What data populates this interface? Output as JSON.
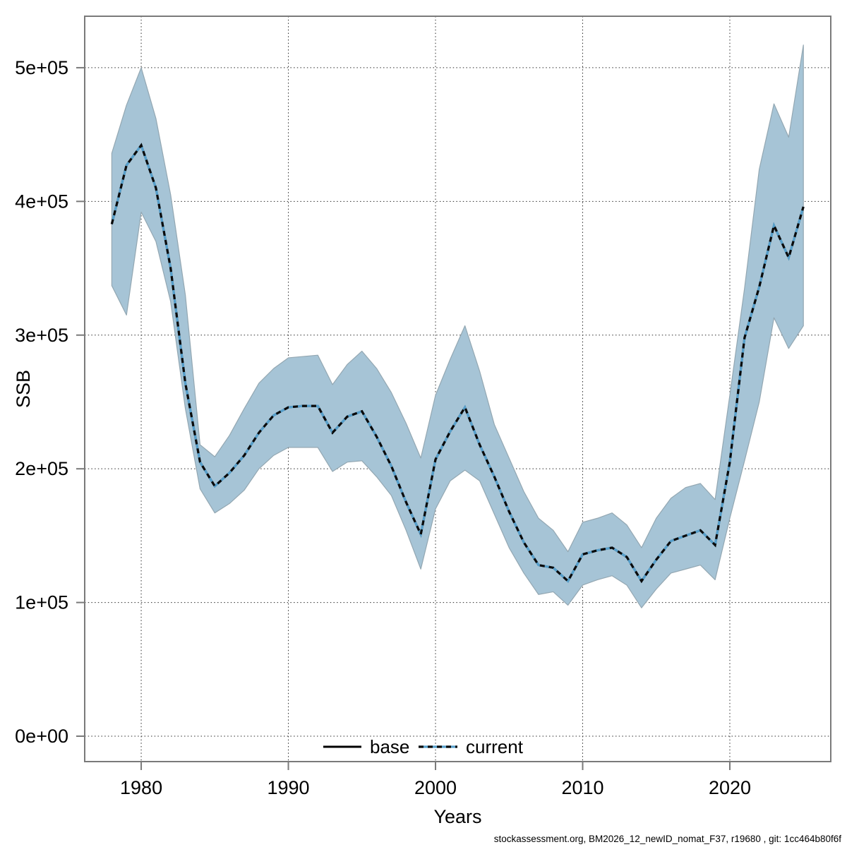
{
  "footer": "stockassessment.org, BM2026_12_newID_nomat_F37, r19680 , git: 1cc464b80f6f",
  "colors": {
    "band_fill": "#a6c4d6",
    "band_edge": "#93a7b2",
    "current_line_blue": "#569fcb",
    "current_line_dash": "#0a0a0a",
    "base_line": "#000000",
    "grid": "#2b2b2b",
    "axis_frame": "#7a7a7a",
    "tick": "#7a7a7a",
    "text": "#000000"
  },
  "chart_data": {
    "type": "line",
    "title": "",
    "xlabel": "Years",
    "ylabel": "SSB",
    "grid": true,
    "legend_position": "bottom-center-inside",
    "xlim": [
      1976.16,
      2026.86
    ],
    "ylim": [
      -19000,
      538500
    ],
    "x_ticks": [
      {
        "label": "1980",
        "value": 1980
      },
      {
        "label": "1990",
        "value": 1990
      },
      {
        "label": "2000",
        "value": 2000
      },
      {
        "label": "2010",
        "value": 2010
      },
      {
        "label": "2020",
        "value": 2020
      }
    ],
    "y_ticks": [
      {
        "label": "0e+00",
        "value": 0
      },
      {
        "label": "1e+05",
        "value": 100000
      },
      {
        "label": "2e+05",
        "value": 200000
      },
      {
        "label": "3e+05",
        "value": 300000
      },
      {
        "label": "4e+05",
        "value": 400000
      },
      {
        "label": "5e+05",
        "value": 500000
      }
    ],
    "legend": [
      {
        "label": "base",
        "style": "solid",
        "color": "#000000"
      },
      {
        "label": "current",
        "style": "dashed-over-blue",
        "color": "#569fcb",
        "overlay": "#0a0a0a"
      }
    ],
    "x": [
      1978,
      1979,
      1980,
      1981,
      1982,
      1983,
      1984,
      1985,
      1986,
      1987,
      1988,
      1989,
      1990,
      1991,
      1992,
      1993,
      1994,
      1995,
      1996,
      1997,
      1998,
      1999,
      2000,
      2001,
      2002,
      2003,
      2004,
      2005,
      2006,
      2007,
      2008,
      2009,
      2010,
      2011,
      2012,
      2013,
      2014,
      2015,
      2016,
      2017,
      2018,
      2019,
      2020,
      2021,
      2022,
      2023,
      2024,
      2025
    ],
    "series": [
      {
        "name": "base",
        "note": "identical to current, hidden beneath it",
        "values": [
          383000,
          427000,
          442000,
          410000,
          350000,
          264000,
          205000,
          187000,
          197000,
          210000,
          227000,
          240000,
          246000,
          247000,
          247000,
          227000,
          239000,
          243000,
          224000,
          202000,
          175000,
          151000,
          207000,
          228000,
          246000,
          218000,
          194000,
          168000,
          145000,
          128000,
          126000,
          116000,
          136000,
          139000,
          141000,
          134000,
          116000,
          132000,
          146000,
          150000,
          154000,
          143000,
          205000,
          298000,
          336000,
          382000,
          358000,
          396000
        ]
      },
      {
        "name": "current",
        "values": [
          383000,
          427000,
          442000,
          410000,
          350000,
          264000,
          205000,
          187000,
          197000,
          210000,
          227000,
          240000,
          246000,
          247000,
          247000,
          227000,
          239000,
          243000,
          224000,
          202000,
          175000,
          151000,
          207000,
          228000,
          246000,
          218000,
          194000,
          168000,
          145000,
          128000,
          126000,
          116000,
          136000,
          139000,
          141000,
          134000,
          116000,
          132000,
          146000,
          150000,
          154000,
          143000,
          205000,
          298000,
          336000,
          382000,
          358000,
          396000
        ],
        "ci_upper": [
          436000,
          472000,
          500000,
          462000,
          405000,
          330000,
          218000,
          209000,
          225000,
          245000,
          264000,
          275000,
          283000,
          284000,
          285000,
          263000,
          278000,
          288000,
          275000,
          257000,
          234000,
          208000,
          255000,
          282000,
          307000,
          273000,
          233000,
          208000,
          183000,
          163000,
          154000,
          138000,
          160000,
          163000,
          167000,
          158000,
          141000,
          163000,
          178000,
          186000,
          189000,
          177000,
          255000,
          335000,
          424000,
          473000,
          448000,
          517000
        ],
        "ci_lower": [
          337000,
          315000,
          392000,
          370000,
          325000,
          245000,
          185000,
          167000,
          174000,
          184000,
          200000,
          210000,
          216000,
          216000,
          216000,
          198000,
          205000,
          206000,
          194000,
          180000,
          154000,
          125000,
          170000,
          191000,
          199000,
          191000,
          166000,
          141000,
          122000,
          106000,
          108000,
          98000,
          113000,
          117000,
          120000,
          113000,
          96000,
          110000,
          122000,
          125000,
          128000,
          117000,
          163000,
          206000,
          250000,
          313000,
          290000,
          307000
        ]
      }
    ]
  }
}
